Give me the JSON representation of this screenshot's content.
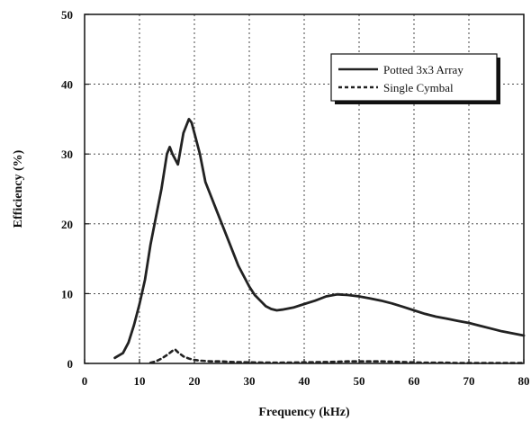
{
  "chart_data": {
    "type": "line",
    "title": "",
    "xlabel": "Frequency (kHz)",
    "ylabel": "Efficiency (%)",
    "xlim": [
      0,
      80
    ],
    "ylim": [
      0,
      50
    ],
    "xticks": [
      "0",
      "10",
      "20",
      "30",
      "40",
      "50",
      "60",
      "70",
      "80"
    ],
    "yticks": [
      "0",
      "10",
      "20",
      "30",
      "40",
      "50"
    ],
    "grid": true,
    "legend_position": "top-right",
    "series": [
      {
        "name": "Potted 3x3 Array",
        "style": "solid",
        "color": "#222222",
        "x": [
          5.5,
          7,
          8,
          9,
          10,
          11,
          12,
          13,
          14,
          15,
          15.5,
          16,
          17,
          18,
          19,
          19.5,
          20,
          21,
          22,
          23,
          24,
          25,
          26,
          27,
          28,
          29,
          30,
          31,
          32,
          33,
          34,
          35,
          36,
          38,
          40,
          42,
          44,
          46,
          48,
          50,
          52,
          54,
          56,
          58,
          60,
          62,
          64,
          66,
          68,
          70,
          72,
          74,
          76,
          78,
          80
        ],
        "values": [
          0.8,
          1.5,
          3,
          5.5,
          8.5,
          12,
          17,
          21,
          25,
          30,
          31,
          30,
          28.5,
          33,
          35,
          34.5,
          33,
          30,
          26,
          24,
          22,
          20,
          18,
          16,
          14,
          12.5,
          11,
          9.8,
          9,
          8.2,
          7.8,
          7.6,
          7.7,
          8,
          8.5,
          9,
          9.6,
          9.9,
          9.8,
          9.6,
          9.3,
          9,
          8.6,
          8.1,
          7.6,
          7.1,
          6.7,
          6.4,
          6.1,
          5.8,
          5.4,
          5,
          4.6,
          4.3,
          4.0
        ]
      },
      {
        "name": "Single Cymbal",
        "style": "dashed",
        "color": "#222222",
        "x": [
          12,
          13,
          14,
          15,
          16,
          16.5,
          17,
          18,
          19,
          20,
          21,
          22,
          23,
          24,
          25,
          26,
          27,
          30,
          35,
          40,
          44,
          46,
          48,
          50,
          52,
          54,
          56,
          58,
          60,
          62,
          64,
          66,
          68,
          70,
          75,
          80
        ],
        "values": [
          0.1,
          0.3,
          0.7,
          1.2,
          1.8,
          2.0,
          1.6,
          1.0,
          0.7,
          0.5,
          0.4,
          0.35,
          0.3,
          0.3,
          0.3,
          0.25,
          0.2,
          0.15,
          0.1,
          0.15,
          0.2,
          0.25,
          0.3,
          0.3,
          0.3,
          0.3,
          0.25,
          0.2,
          0.15,
          0.1,
          0.1,
          0.1,
          0.05,
          0.05,
          0.05,
          0.05
        ]
      }
    ]
  }
}
